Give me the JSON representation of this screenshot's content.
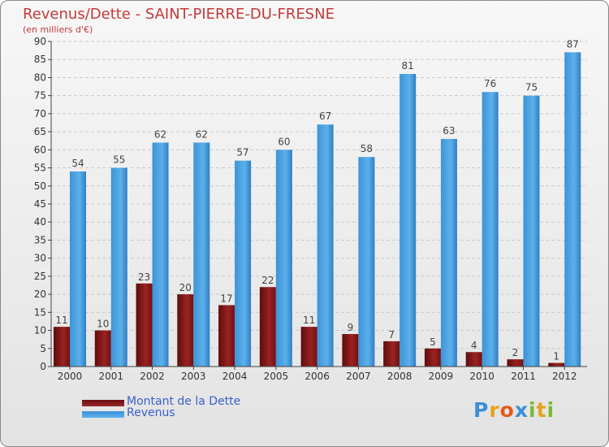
{
  "title": "Revenus/Dette - SAINT-PIERRE-DU-FRESNE",
  "subtitle": "(en milliers d'€)",
  "chart_data": {
    "type": "bar",
    "categories": [
      "2000",
      "2001",
      "2002",
      "2003",
      "2004",
      "2005",
      "2006",
      "2007",
      "2008",
      "2009",
      "2010",
      "2011",
      "2012"
    ],
    "series": [
      {
        "name": "Montant de la Dette",
        "color": "#8b1a1a",
        "values": [
          11,
          10,
          23,
          20,
          17,
          22,
          11,
          9,
          7,
          5,
          4,
          2,
          1
        ]
      },
      {
        "name": "Revenus",
        "color": "#4ea3e0",
        "values": [
          54,
          55,
          62,
          62,
          57,
          60,
          67,
          58,
          81,
          63,
          76,
          75,
          87
        ]
      }
    ],
    "yticks": [
      0,
      5,
      10,
      15,
      20,
      25,
      30,
      35,
      40,
      45,
      50,
      55,
      60,
      65,
      70,
      75,
      80,
      85,
      90
    ],
    "ylim": [
      0,
      90
    ],
    "grid": true,
    "legend_position": "bottom-left"
  },
  "legend": {
    "debt_label": "Montant de la Dette",
    "revenue_label": "Revenus"
  },
  "logo": {
    "letters": [
      "P",
      "r",
      "o",
      "x",
      "i",
      "t",
      "i"
    ],
    "colors": [
      "#3a8fd8",
      "#e8a21c",
      "#e25a1c",
      "#3a8fd8",
      "#7cb82f",
      "#e8a21c",
      "#7cb82f"
    ]
  }
}
